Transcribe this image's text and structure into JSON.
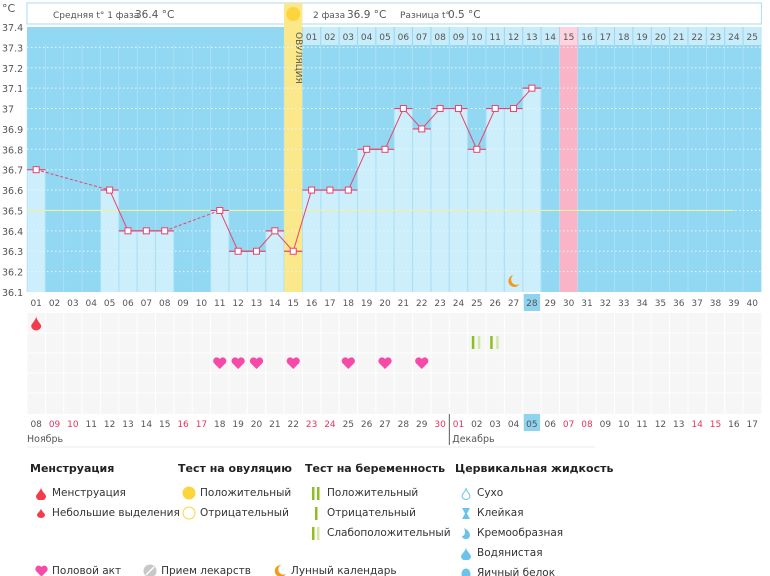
{
  "unit_label": "°C",
  "header": {
    "phase1_label": "Средняя t° 1 фаза",
    "phase1_value": "36.4 °C",
    "phase2_label": "2 фаза",
    "phase2_value": "36.9 °C",
    "diff_label": "Разница t°",
    "diff_value": "0.5 °C"
  },
  "ovulation_label": "ОВУЛЯЦИЯ",
  "colors": {
    "chart_bg": "#93d8f2",
    "bar": "#cdeefb",
    "line": "#e8436e",
    "ovulation": "#fbe88a",
    "expected_period": "#f9b4c8",
    "coverline": "#f3f09a"
  },
  "chart_data": {
    "type": "line",
    "title": "",
    "ylabel": "°C",
    "ylim": [
      36.1,
      37.4
    ],
    "yticks": [
      "37.4",
      "37.3",
      "37.2",
      "37.1",
      "37",
      "36.9",
      "36.8",
      "36.7",
      "36.6",
      "36.5",
      "36.4",
      "36.3",
      "36.2",
      "36.1"
    ],
    "coverline": 36.5,
    "grid": true,
    "cycle_days": [
      "01",
      "02",
      "03",
      "04",
      "05",
      "06",
      "07",
      "08",
      "09",
      "10",
      "11",
      "12",
      "13",
      "14",
      "15",
      "16",
      "17",
      "18",
      "19",
      "20",
      "21",
      "22",
      "23",
      "24",
      "25",
      "26",
      "27",
      "28",
      "29",
      "30",
      "31",
      "32",
      "33",
      "34",
      "35",
      "36",
      "37",
      "38",
      "39",
      "40"
    ],
    "temperatures": [
      36.7,
      null,
      null,
      null,
      36.6,
      36.4,
      36.4,
      36.4,
      null,
      null,
      36.5,
      36.3,
      36.3,
      36.4,
      36.3,
      36.6,
      36.6,
      36.6,
      36.8,
      36.8,
      37.0,
      36.9,
      37.0,
      37.0,
      36.8,
      37.0,
      37.0,
      37.1,
      null,
      null,
      null,
      null,
      null,
      null,
      null,
      null,
      null,
      null,
      null,
      null
    ],
    "ovulation_day": 15,
    "expected_period_day": 30,
    "current_day": 28,
    "phase2_days": [
      "01",
      "02",
      "03",
      "04",
      "05",
      "06",
      "07",
      "08",
      "09",
      "10",
      "11",
      "12",
      "13",
      "14",
      "15",
      "16",
      "17",
      "18",
      "19",
      "20",
      "21",
      "22",
      "23",
      "24",
      "25"
    ],
    "dates": [
      "08",
      "09",
      "10",
      "11",
      "12",
      "13",
      "14",
      "15",
      "16",
      "17",
      "18",
      "19",
      "20",
      "21",
      "22",
      "23",
      "24",
      "25",
      "26",
      "27",
      "28",
      "29",
      "30",
      "01",
      "02",
      "03",
      "04",
      "05",
      "06",
      "07",
      "08",
      "09",
      "10",
      "11",
      "12",
      "13",
      "14",
      "15",
      "16",
      "17"
    ],
    "weekend_dates": [
      2,
      3,
      9,
      10,
      16,
      17,
      23,
      24,
      30,
      31,
      37,
      38
    ],
    "months": [
      "Ноябрь",
      "Декабрь"
    ],
    "markers": {
      "menstruation": [
        1
      ],
      "intercourse": [
        11,
        12,
        13,
        15,
        18,
        20,
        22
      ],
      "pregnancy_test_weak": [
        25,
        26
      ],
      "moon": [
        27
      ]
    }
  },
  "legend": {
    "menstruation": {
      "title": "Менструация",
      "items": [
        "Менструация",
        "Небольшие выделения"
      ]
    },
    "ovulation_test": {
      "title": "Тест на овуляцию",
      "items": [
        "Положительный",
        "Отрицательный"
      ]
    },
    "pregnancy_test": {
      "title": "Тест на беременность",
      "items": [
        "Положительный",
        "Отрицательный",
        "Слабоположительный"
      ]
    },
    "cervical": {
      "title": "Цервикальная жидкость",
      "items": [
        "Сухо",
        "Клейкая",
        "Кремообразная",
        "Водянистая",
        "Яичный белок"
      ]
    },
    "other": [
      "Половой акт",
      "Прием лекарств",
      "Лунный календарь"
    ]
  }
}
